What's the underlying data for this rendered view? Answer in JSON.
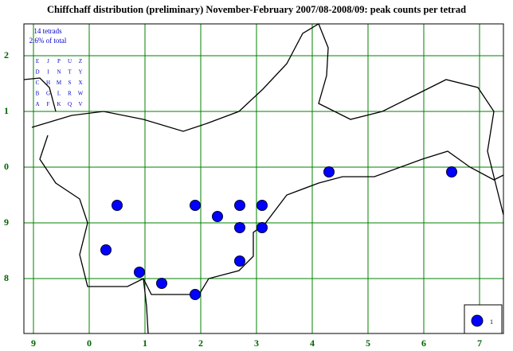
{
  "title": "Chiffchaff distribution (preliminary) November-February 2007/08-2008/09: peak counts per tetrad",
  "summary": {
    "tetrads": "14 tetrads",
    "percent": "2.6% of total"
  },
  "tetrad_letters": [
    [
      "E",
      "J",
      "P",
      "U",
      "Z"
    ],
    [
      "D",
      "I",
      "N",
      "T",
      "Y"
    ],
    [
      "C",
      "H",
      "M",
      "S",
      "X"
    ],
    [
      "B",
      "G",
      "L",
      "R",
      "W"
    ],
    [
      "A",
      "F",
      "K",
      "Q",
      "V"
    ]
  ],
  "x_labels": [
    "9",
    "0",
    "1",
    "2",
    "3",
    "4",
    "5",
    "6",
    "7"
  ],
  "y_labels": [
    "2",
    "1",
    "0",
    "9",
    "8"
  ],
  "legend": {
    "label": "1"
  },
  "dots": {
    "x": [
      15,
      29,
      33,
      37,
      41,
      37,
      41,
      13,
      37,
      19,
      23,
      29,
      53,
      75
    ],
    "y": [
      13,
      13,
      11,
      13,
      13,
      9,
      9,
      5,
      3,
      1,
      -1,
      -3,
      19,
      19
    ]
  }
}
